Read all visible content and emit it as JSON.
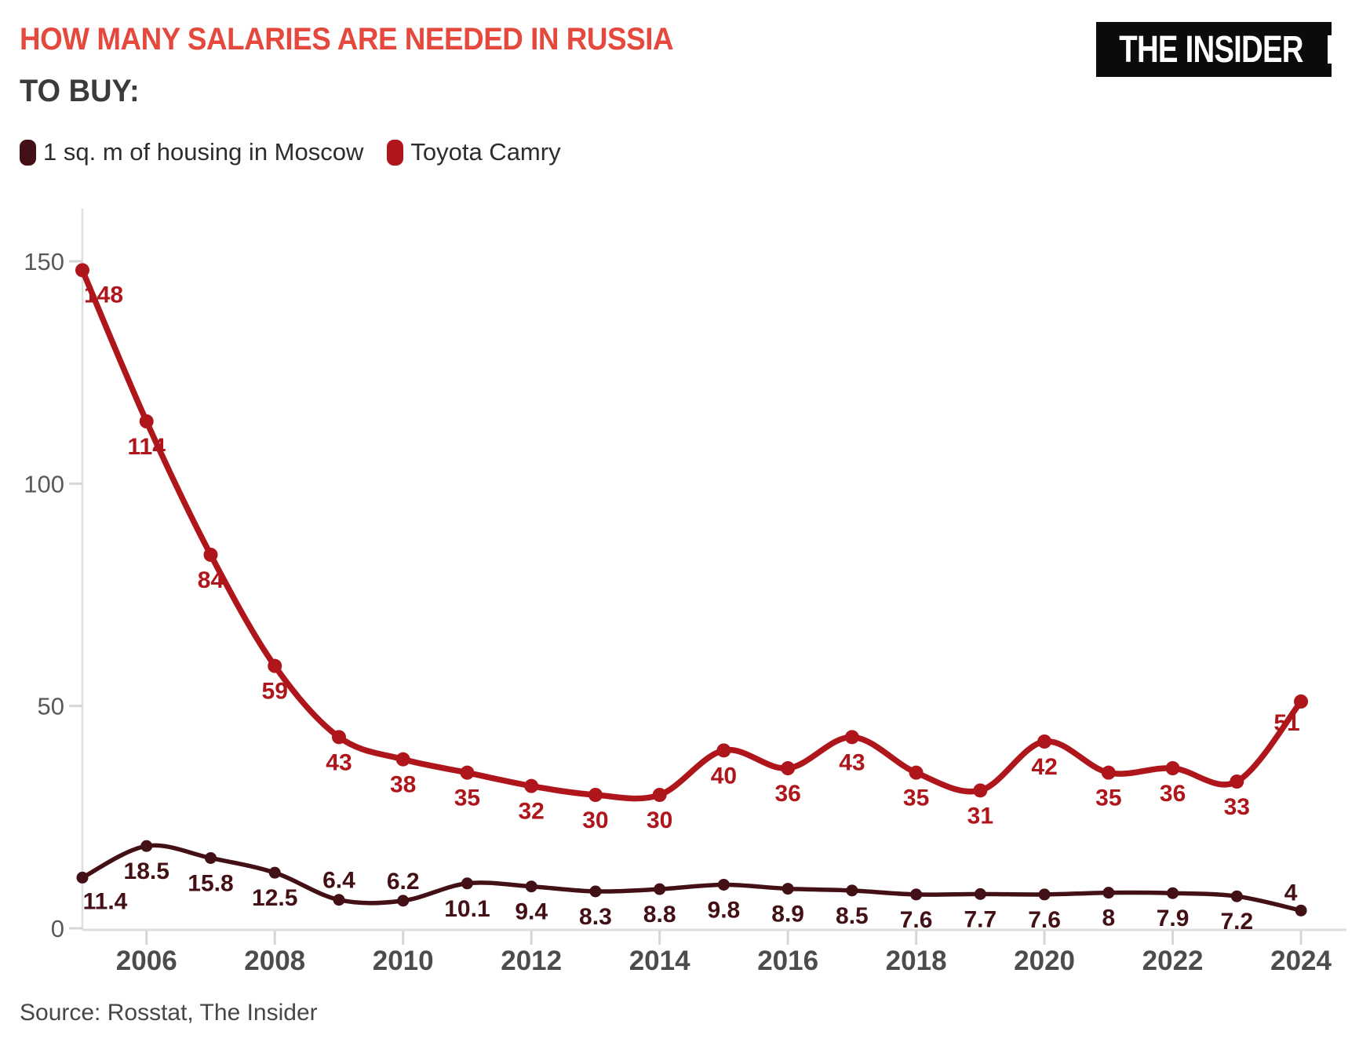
{
  "header": {
    "title": "HOW MANY SALARIES ARE NEEDED IN RUSSIA",
    "subtitle": "TO BUY:",
    "logo": "THE INSIDER",
    "title_color": "#e5483c"
  },
  "legend": [
    {
      "key": "housing",
      "label": "1 sq. m of housing in Moscow",
      "color": "#421015"
    },
    {
      "key": "camry",
      "label": "Toyota Camry",
      "color": "#af161c"
    }
  ],
  "footer": {
    "source": "Source: Rosstat, The Insider"
  },
  "colors": {
    "axis_line": "#dedede",
    "tick_mark": "#d6d6d6",
    "y_tick_label": "#58595b",
    "x_tick_label": "#4c4c4c",
    "background": "#ffffff"
  },
  "chart_data": {
    "type": "line",
    "x": [
      2005,
      2006,
      2007,
      2008,
      2009,
      2010,
      2011,
      2012,
      2013,
      2014,
      2015,
      2016,
      2017,
      2018,
      2019,
      2020,
      2021,
      2022,
      2023,
      2024
    ],
    "x_ticks": [
      2006,
      2008,
      2010,
      2012,
      2014,
      2016,
      2018,
      2020,
      2022,
      2024
    ],
    "x_tick_labels": [
      "2006",
      "2008",
      "2010",
      "2012",
      "2014",
      "2016",
      "2018",
      "2020",
      "2022",
      "2024"
    ],
    "y_ticks": [
      0,
      50,
      100,
      150
    ],
    "y_tick_labels": [
      "0",
      "50",
      "100",
      "150"
    ],
    "ylim": [
      0,
      160
    ],
    "grid": "off",
    "legend_position": "top-left",
    "series": [
      {
        "key": "housing",
        "name": "1 sq. m of housing in Moscow",
        "color": "#421015",
        "values": [
          11.4,
          18.5,
          15.8,
          12.5,
          6.4,
          6.2,
          10.1,
          9.4,
          8.3,
          8.8,
          9.8,
          8.9,
          8.5,
          7.6,
          7.7,
          7.6,
          8,
          7.9,
          7.2,
          4
        ],
        "labels": [
          "11.4",
          "18.5",
          "15.8",
          "12.5",
          "6.4",
          "6.2",
          "10.1",
          "9.4",
          "8.3",
          "8.8",
          "9.8",
          "8.9",
          "8.5",
          "7.6",
          "7.7",
          "7.6",
          "8",
          "7.9",
          "7.2",
          "4"
        ]
      },
      {
        "key": "camry",
        "name": "Toyota Camry",
        "color": "#af161c",
        "values": [
          148,
          114,
          84,
          59,
          43,
          38,
          35,
          32,
          30,
          30,
          40,
          36,
          43,
          35,
          31,
          42,
          35,
          36,
          33,
          51
        ],
        "labels": [
          "148",
          "114",
          "84",
          "59",
          "43",
          "38",
          "35",
          "32",
          "30",
          "30",
          "40",
          "36",
          "43",
          "35",
          "31",
          "42",
          "35",
          "36",
          "33",
          "51"
        ]
      }
    ],
    "label_offsets": {
      "housing": {
        "0": [
          29,
          40
        ],
        "4": [
          0,
          -15
        ],
        "5": [
          0,
          -15
        ],
        "19": [
          -13,
          -13
        ]
      },
      "camry": {
        "0": [
          27,
          41
        ],
        "19": [
          -18,
          37
        ]
      }
    }
  }
}
